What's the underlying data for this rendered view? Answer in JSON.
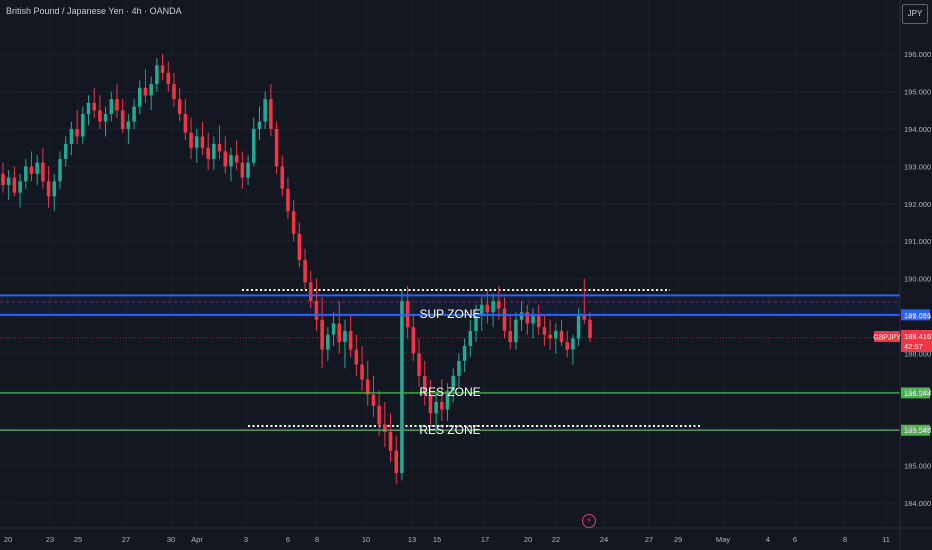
{
  "header": {
    "title": "British Pound / Japanese Yen · 4h · OANDA",
    "currency": "JPY"
  },
  "colors": {
    "up": "#22ab94",
    "down": "#f23645",
    "support": "#2962ff",
    "resistance": "#4caf50",
    "price": "#f23645",
    "background": "#131722"
  },
  "icons": {
    "flash": "lightning-bolt-icon"
  },
  "chart_data": {
    "type": "candlestick",
    "symbol": "GBPJPY",
    "interval": "4h",
    "ylim": [
      183.6,
      196.6
    ],
    "y_ticks": [
      "184.000",
      "185.000",
      "186.000",
      "187.000",
      "188.000",
      "189.000",
      "190.000",
      "191.000",
      "192.000",
      "193.000",
      "194.000",
      "195.000",
      "196.000"
    ],
    "x_ticks": [
      "20",
      "23",
      "25",
      "27",
      "30",
      "Apr",
      "3",
      "6",
      "8",
      "10",
      "13",
      "15",
      "17",
      "20",
      "22",
      "24",
      "27",
      "29",
      "May",
      "4",
      "6",
      "8",
      "11"
    ],
    "current_price": {
      "label": "188.416",
      "countdown": "42:57",
      "value": 188.416,
      "symbol_tag": "GBPJPY"
    },
    "horizontal_lines": [
      {
        "name": "support-upper",
        "value": 189.55,
        "color": "#2962ff",
        "style": "solid"
      },
      {
        "name": "support-lower",
        "value": 189.031,
        "color": "#2962ff",
        "style": "solid",
        "axis_label": "189.031"
      },
      {
        "name": "resistance-upper",
        "value": 186.944,
        "color": "#4caf50",
        "style": "solid",
        "axis_label": "186.944"
      },
      {
        "name": "resistance-lower",
        "value": 185.946,
        "color": "#4caf50",
        "style": "solid",
        "axis_label": "185.946"
      }
    ],
    "zone_labels": {
      "sup": "SUP ZONE",
      "res1": "RES ZONE",
      "res2": "RES ZONE"
    },
    "candles": [
      [
        192.8,
        193.1,
        192.3,
        192.5
      ],
      [
        192.5,
        192.9,
        192.1,
        192.7
      ],
      [
        192.7,
        193.0,
        192.2,
        192.3
      ],
      [
        192.3,
        192.8,
        191.9,
        192.6
      ],
      [
        192.6,
        193.2,
        192.4,
        193.0
      ],
      [
        193.0,
        193.4,
        192.6,
        192.8
      ],
      [
        192.8,
        193.3,
        192.5,
        193.1
      ],
      [
        193.1,
        193.5,
        192.4,
        192.6
      ],
      [
        192.6,
        193.0,
        191.9,
        192.2
      ],
      [
        192.2,
        192.8,
        191.8,
        192.6
      ],
      [
        192.6,
        193.4,
        192.4,
        193.2
      ],
      [
        193.2,
        193.8,
        193.0,
        193.6
      ],
      [
        193.6,
        194.2,
        193.3,
        194.0
      ],
      [
        194.0,
        194.5,
        193.6,
        193.8
      ],
      [
        193.8,
        194.6,
        193.6,
        194.4
      ],
      [
        194.4,
        194.9,
        194.1,
        194.7
      ],
      [
        194.7,
        195.1,
        194.3,
        194.5
      ],
      [
        194.5,
        194.9,
        194.0,
        194.2
      ],
      [
        194.2,
        194.6,
        193.8,
        194.4
      ],
      [
        194.4,
        195.0,
        194.2,
        194.8
      ],
      [
        194.8,
        195.2,
        194.3,
        194.5
      ],
      [
        194.5,
        194.8,
        193.9,
        194.0
      ],
      [
        194.0,
        194.4,
        193.6,
        194.2
      ],
      [
        194.2,
        194.8,
        194.0,
        194.6
      ],
      [
        194.6,
        195.3,
        194.4,
        195.1
      ],
      [
        195.1,
        195.6,
        194.7,
        194.9
      ],
      [
        194.9,
        195.4,
        194.5,
        195.2
      ],
      [
        195.2,
        195.9,
        195.0,
        195.7
      ],
      [
        195.7,
        196.0,
        195.3,
        195.5
      ],
      [
        195.5,
        195.8,
        195.0,
        195.2
      ],
      [
        195.2,
        195.5,
        194.6,
        194.8
      ],
      [
        194.8,
        195.1,
        194.2,
        194.4
      ],
      [
        194.4,
        194.8,
        193.7,
        193.9
      ],
      [
        193.9,
        194.3,
        193.2,
        193.5
      ],
      [
        193.5,
        194.0,
        193.1,
        193.8
      ],
      [
        193.8,
        194.2,
        193.3,
        193.5
      ],
      [
        193.5,
        193.9,
        192.9,
        193.2
      ],
      [
        193.2,
        193.8,
        192.9,
        193.6
      ],
      [
        193.6,
        194.1,
        193.2,
        193.4
      ],
      [
        193.4,
        193.8,
        192.8,
        193.0
      ],
      [
        193.0,
        193.5,
        192.6,
        193.3
      ],
      [
        193.3,
        193.7,
        192.9,
        193.1
      ],
      [
        193.1,
        193.4,
        192.4,
        192.7
      ],
      [
        192.7,
        193.3,
        192.5,
        193.1
      ],
      [
        193.1,
        194.3,
        193.0,
        194.0
      ],
      [
        194.0,
        194.6,
        193.7,
        194.2
      ],
      [
        194.2,
        195.0,
        194.0,
        194.8
      ],
      [
        194.8,
        195.2,
        193.8,
        194.0
      ],
      [
        194.0,
        194.2,
        192.8,
        193.0
      ],
      [
        193.0,
        193.3,
        192.2,
        192.4
      ],
      [
        192.4,
        192.7,
        191.6,
        191.8
      ],
      [
        191.8,
        192.1,
        191.0,
        191.2
      ],
      [
        191.2,
        191.5,
        190.3,
        190.5
      ],
      [
        190.5,
        190.8,
        189.7,
        189.9
      ],
      [
        189.9,
        190.2,
        189.2,
        189.4
      ],
      [
        189.4,
        190.0,
        188.6,
        188.9
      ],
      [
        188.9,
        189.5,
        187.6,
        188.1
      ],
      [
        188.1,
        188.7,
        187.8,
        188.5
      ],
      [
        188.5,
        189.1,
        188.2,
        188.8
      ],
      [
        188.8,
        189.4,
        188.0,
        188.3
      ],
      [
        188.3,
        188.9,
        187.6,
        188.6
      ],
      [
        188.6,
        189.0,
        187.9,
        188.1
      ],
      [
        188.1,
        188.5,
        187.4,
        187.7
      ],
      [
        187.7,
        188.2,
        187.0,
        187.3
      ],
      [
        187.3,
        187.8,
        186.6,
        186.9
      ],
      [
        186.9,
        187.4,
        186.3,
        186.6
      ],
      [
        186.6,
        187.0,
        185.8,
        186.1
      ],
      [
        186.1,
        186.7,
        185.5,
        185.9
      ],
      [
        185.9,
        186.4,
        185.1,
        185.4
      ],
      [
        185.4,
        185.8,
        184.5,
        184.8
      ],
      [
        184.8,
        189.7,
        184.6,
        189.4
      ],
      [
        189.4,
        189.8,
        188.4,
        188.7
      ],
      [
        188.7,
        189.0,
        187.8,
        188.0
      ],
      [
        188.0,
        188.4,
        187.1,
        187.4
      ],
      [
        187.4,
        187.8,
        186.6,
        186.9
      ],
      [
        186.9,
        187.3,
        186.1,
        186.4
      ],
      [
        186.4,
        187.0,
        185.9,
        186.7
      ],
      [
        186.7,
        187.3,
        186.2,
        186.5
      ],
      [
        186.5,
        187.2,
        186.2,
        187.0
      ],
      [
        187.0,
        187.6,
        186.7,
        187.4
      ],
      [
        187.4,
        188.0,
        187.1,
        187.8
      ],
      [
        187.8,
        188.4,
        187.5,
        188.2
      ],
      [
        188.2,
        188.9,
        187.9,
        188.6
      ],
      [
        188.6,
        189.3,
        188.3,
        189.0
      ],
      [
        189.0,
        189.5,
        188.6,
        189.3
      ],
      [
        189.3,
        189.7,
        188.8,
        189.1
      ],
      [
        189.1,
        189.6,
        188.7,
        189.4
      ],
      [
        189.4,
        189.8,
        188.9,
        189.2
      ],
      [
        189.2,
        189.5,
        188.4,
        188.6
      ],
      [
        188.6,
        189.0,
        188.1,
        188.3
      ],
      [
        188.3,
        189.1,
        188.1,
        188.9
      ],
      [
        188.9,
        189.4,
        188.6,
        189.1
      ],
      [
        189.1,
        189.3,
        188.5,
        188.8
      ],
      [
        188.8,
        189.2,
        188.4,
        189.0
      ],
      [
        189.0,
        189.3,
        188.5,
        188.7
      ],
      [
        188.7,
        189.0,
        188.2,
        188.5
      ],
      [
        188.5,
        188.9,
        188.1,
        188.4
      ],
      [
        188.4,
        188.8,
        188.0,
        188.6
      ],
      [
        188.6,
        188.9,
        188.2,
        188.3
      ],
      [
        188.3,
        188.6,
        187.9,
        188.1
      ],
      [
        188.1,
        188.5,
        187.7,
        188.4
      ],
      [
        188.4,
        189.2,
        188.2,
        189.0
      ],
      [
        189.0,
        190.0,
        188.8,
        188.9
      ],
      [
        188.9,
        189.1,
        188.3,
        188.416
      ]
    ]
  }
}
